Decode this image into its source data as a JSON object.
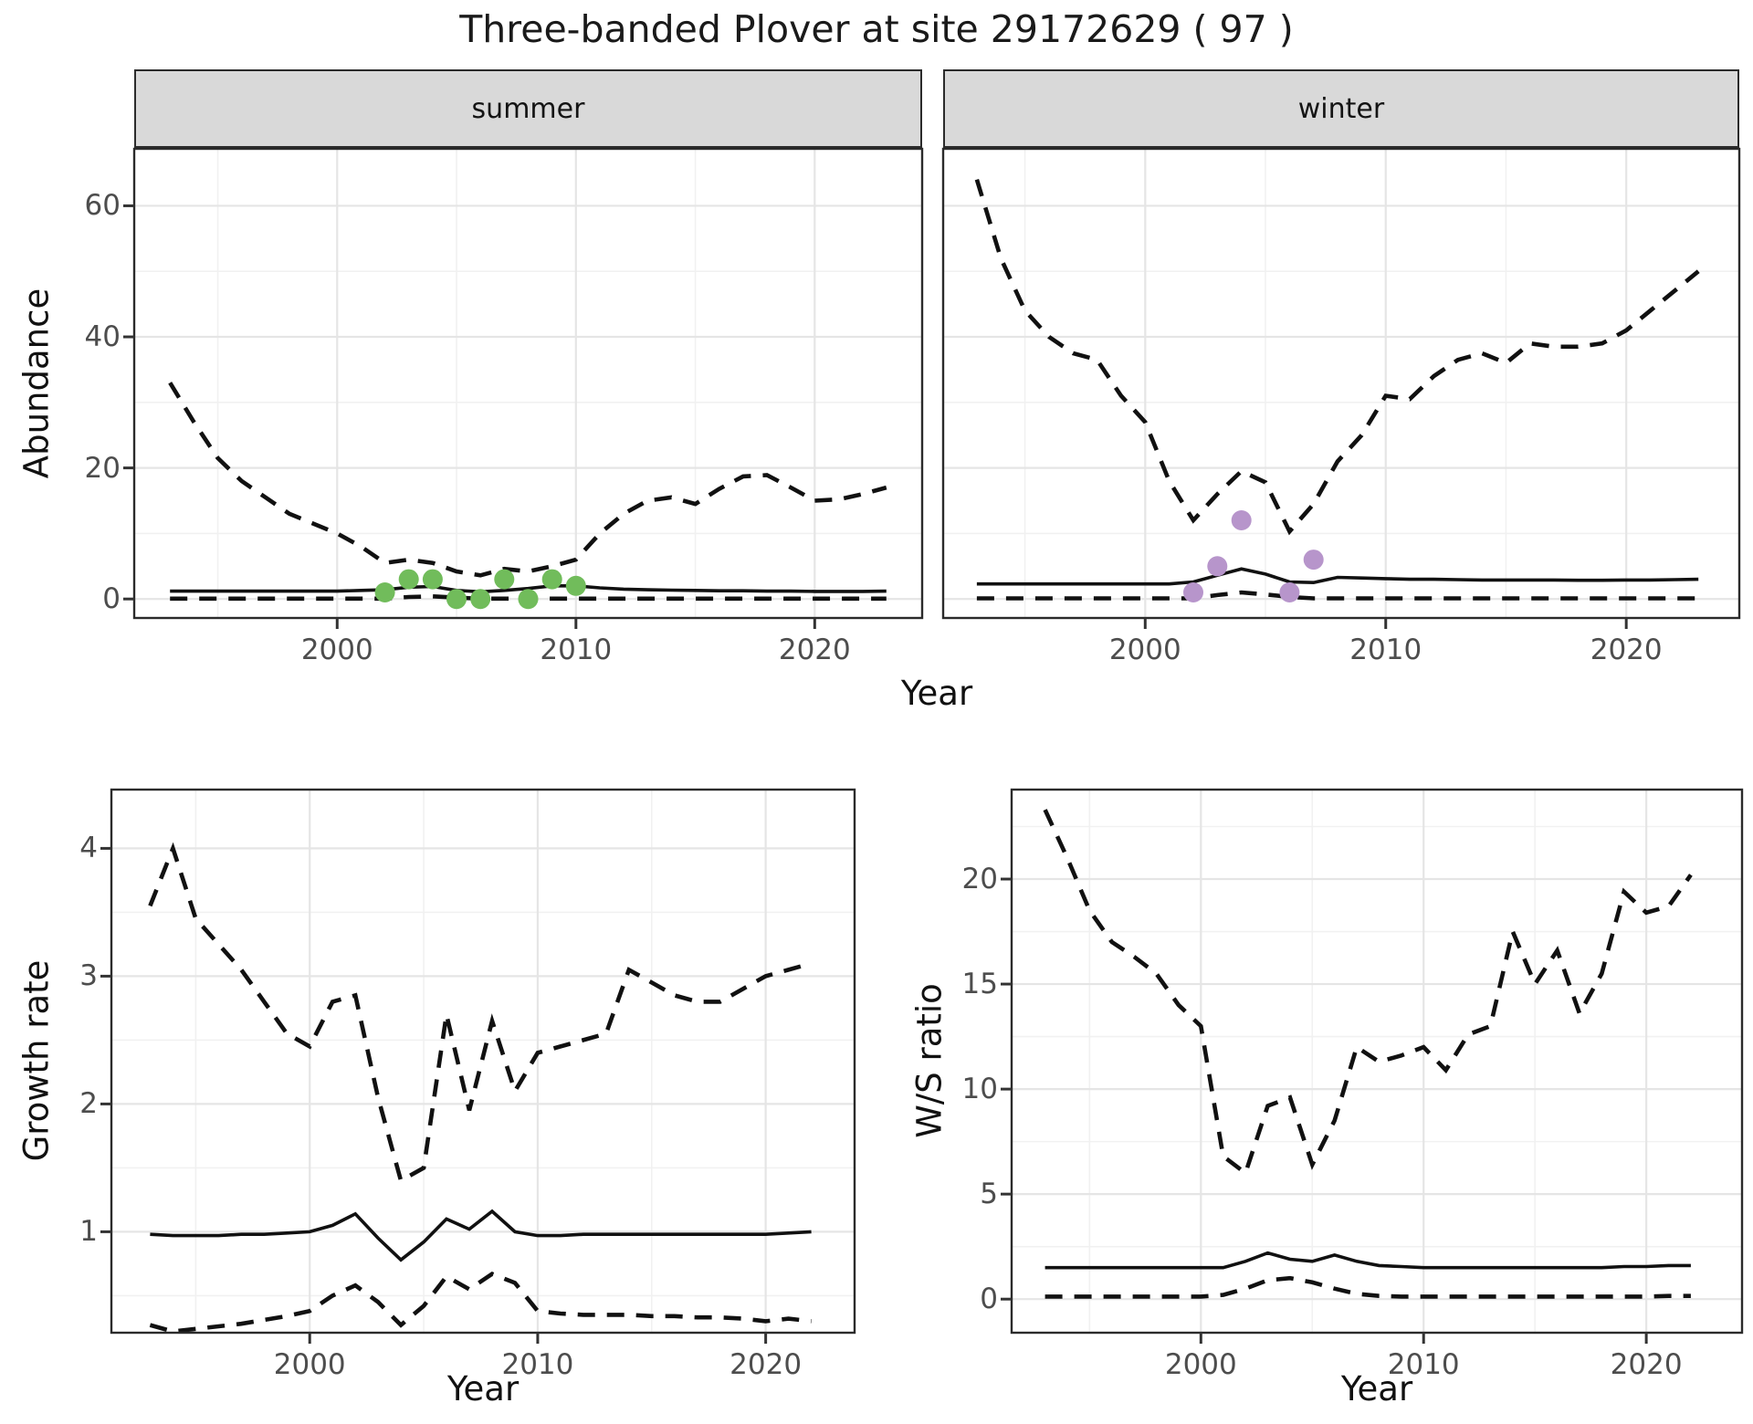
{
  "title": "Three-banded Plover at site 29172629 ( 97 )",
  "colors": {
    "summer_point": "#71BC5B",
    "winter_point": "#B795CB",
    "line": "#111111",
    "grid_major": "#e5e5e5",
    "grid_minor": "#f1f1f1",
    "strip_bg": "#d9d9d9",
    "panel_border": "#2b2b2b",
    "tick_text": "#4d4d4d"
  },
  "axis_titles": {
    "abundance": "Abundance",
    "year_top": "Year",
    "growth": "Growth rate",
    "year_growth": "Year",
    "ws": "W/S ratio",
    "year_ws": "Year"
  },
  "chart_data": [
    {
      "id": "summer",
      "type": "line",
      "strip": "summer",
      "xlabel": "Year",
      "ylabel": "Abundance",
      "xlim": [
        1991.5,
        2024.5
      ],
      "ylim": [
        -2.9,
        68.7
      ],
      "x_ticks": [
        2000,
        2010,
        2020
      ],
      "x_minor": [
        1995,
        2005,
        2015
      ],
      "y_ticks": [
        0,
        20,
        40,
        60
      ],
      "y_minor": [
        10,
        30,
        50
      ],
      "series": [
        {
          "name": "upper_95ci",
          "style": "dashed",
          "start": 1993,
          "values": [
            33,
            27,
            21.5,
            18,
            15.5,
            13,
            11.5,
            10,
            8,
            5.5,
            6,
            5.5,
            4.2,
            3.6,
            4.6,
            4.2,
            5,
            6,
            10,
            13,
            15,
            15.5,
            14.5,
            16.8,
            18.7,
            18.9,
            17,
            15,
            15.2,
            16,
            17
          ]
        },
        {
          "name": "median",
          "style": "solid",
          "start": 1993,
          "values": [
            1.2,
            1.2,
            1.2,
            1.2,
            1.2,
            1.2,
            1.2,
            1.2,
            1.3,
            1.4,
            1.8,
            1.9,
            1.3,
            1.1,
            1.3,
            1.6,
            2.0,
            2.0,
            1.7,
            1.5,
            1.4,
            1.35,
            1.3,
            1.25,
            1.25,
            1.2,
            1.2,
            1.15,
            1.15,
            1.15,
            1.2
          ]
        },
        {
          "name": "lower_95ci",
          "style": "dashed",
          "start": 1993,
          "values": [
            0.05,
            0.05,
            0.05,
            0.05,
            0.05,
            0.05,
            0.05,
            0.05,
            0.05,
            0.05,
            0.3,
            0.4,
            0.2,
            0.05,
            0.05,
            0.05,
            0.05,
            0.05,
            0.05,
            0.05,
            0.05,
            0.05,
            0.05,
            0.05,
            0.05,
            0.05,
            0.05,
            0.05,
            0.05,
            0.05,
            0.05
          ]
        }
      ],
      "scatter": {
        "name": "observed-summer-counts",
        "color_key": "summer_point",
        "points": [
          [
            2002,
            1
          ],
          [
            2003,
            3
          ],
          [
            2004,
            3
          ],
          [
            2005,
            0
          ],
          [
            2006,
            0
          ],
          [
            2007,
            3
          ],
          [
            2008,
            0
          ],
          [
            2009,
            3
          ],
          [
            2010,
            2
          ]
        ]
      }
    },
    {
      "id": "winter",
      "type": "line",
      "strip": "winter",
      "xlabel": "Year",
      "ylabel": "Abundance",
      "xlim": [
        1991.6,
        2024.7
      ],
      "ylim": [
        -2.9,
        68.7
      ],
      "x_ticks": [
        2000,
        2010,
        2020
      ],
      "x_minor": [
        1995,
        2005,
        2015
      ],
      "y_ticks": [
        0,
        20,
        40,
        60
      ],
      "y_minor": [
        10,
        30,
        50
      ],
      "series": [
        {
          "name": "upper_95ci",
          "style": "dashed",
          "start": 1993,
          "values": [
            64,
            52,
            44,
            40,
            37.5,
            36.5,
            31,
            27,
            18,
            12,
            16,
            19.5,
            17.8,
            10.3,
            14.5,
            21,
            25,
            31,
            30.5,
            34,
            36.5,
            37.5,
            36,
            39,
            38.5,
            38.5,
            39,
            41,
            44,
            47,
            50
          ]
        },
        {
          "name": "median",
          "style": "solid",
          "start": 1993,
          "values": [
            2.3,
            2.3,
            2.3,
            2.3,
            2.3,
            2.3,
            2.3,
            2.3,
            2.3,
            2.6,
            3.6,
            4.6,
            3.8,
            2.6,
            2.5,
            3.3,
            3.2,
            3.1,
            3.0,
            3.0,
            2.95,
            2.9,
            2.9,
            2.9,
            2.9,
            2.85,
            2.85,
            2.9,
            2.9,
            2.95,
            3.0
          ]
        },
        {
          "name": "lower_95ci",
          "style": "dashed",
          "start": 1993,
          "values": [
            0.1,
            0.1,
            0.1,
            0.1,
            0.1,
            0.1,
            0.1,
            0.1,
            0.1,
            0.1,
            0.6,
            1.0,
            0.7,
            0.3,
            0.1,
            0.1,
            0.1,
            0.1,
            0.1,
            0.1,
            0.1,
            0.1,
            0.1,
            0.1,
            0.1,
            0.1,
            0.1,
            0.1,
            0.1,
            0.1,
            0.1
          ]
        }
      ],
      "scatter": {
        "name": "observed-winter-counts",
        "color_key": "winter_point",
        "points": [
          [
            2002,
            1
          ],
          [
            2003,
            5
          ],
          [
            2004,
            12
          ],
          [
            2006,
            1
          ],
          [
            2007,
            6
          ]
        ]
      }
    },
    {
      "id": "growth",
      "type": "line",
      "strip": null,
      "xlabel": "Year",
      "ylabel": "Growth rate",
      "xlim": [
        1991.3,
        2023.9
      ],
      "ylim": [
        0.21,
        4.46
      ],
      "x_ticks": [
        2000,
        2010,
        2020
      ],
      "x_minor": [
        1995,
        2005,
        2015
      ],
      "y_ticks": [
        1,
        2,
        3,
        4
      ],
      "y_minor": [
        0.5,
        1.5,
        2.5,
        3.5
      ],
      "series": [
        {
          "name": "upper_95ci",
          "style": "dashed",
          "start": 1993,
          "values": [
            3.55,
            4.0,
            3.45,
            3.25,
            3.05,
            2.8,
            2.55,
            2.45,
            2.8,
            2.85,
            2.05,
            1.4,
            1.5,
            2.7,
            1.95,
            2.65,
            2.1,
            2.4,
            2.45,
            2.5,
            2.55,
            3.05,
            2.95,
            2.85,
            2.8,
            2.8,
            2.9,
            3.0,
            3.05,
            3.1
          ]
        },
        {
          "name": "median",
          "style": "solid",
          "start": 1993,
          "values": [
            0.98,
            0.97,
            0.97,
            0.97,
            0.98,
            0.98,
            0.99,
            1.0,
            1.05,
            1.14,
            0.95,
            0.78,
            0.92,
            1.1,
            1.02,
            1.16,
            1.0,
            0.97,
            0.97,
            0.98,
            0.98,
            0.98,
            0.98,
            0.98,
            0.98,
            0.98,
            0.98,
            0.98,
            0.99,
            1.0
          ]
        },
        {
          "name": "lower_95ci",
          "style": "dashed",
          "start": 1993,
          "values": [
            0.27,
            0.22,
            0.24,
            0.26,
            0.28,
            0.31,
            0.34,
            0.38,
            0.5,
            0.58,
            0.45,
            0.27,
            0.42,
            0.65,
            0.55,
            0.67,
            0.6,
            0.38,
            0.36,
            0.35,
            0.35,
            0.35,
            0.34,
            0.34,
            0.33,
            0.33,
            0.32,
            0.3,
            0.32,
            0.3
          ]
        }
      ],
      "scatter": null
    },
    {
      "id": "ws",
      "type": "line",
      "strip": null,
      "xlabel": "Year",
      "ylabel": "W/S ratio",
      "xlim": [
        1991.5,
        2024.3
      ],
      "ylim": [
        -1.6,
        24.26
      ],
      "x_ticks": [
        2000,
        2010,
        2020
      ],
      "x_minor": [
        1995,
        2005,
        2015
      ],
      "y_ticks": [
        0,
        5,
        10,
        15,
        20
      ],
      "y_minor": [
        2.5,
        7.5,
        12.5,
        17.5,
        22.5
      ],
      "series": [
        {
          "name": "upper_95ci",
          "style": "dashed",
          "start": 1993,
          "values": [
            23.3,
            21,
            18.5,
            17,
            16.3,
            15.5,
            14,
            13,
            6.8,
            6.0,
            9.2,
            9.6,
            6.4,
            8.5,
            12,
            11.3,
            11.6,
            12,
            10.9,
            12.6,
            13,
            17.5,
            15,
            16.6,
            13.6,
            15.5,
            19.4,
            18.4,
            18.7,
            20.2
          ]
        },
        {
          "name": "median",
          "style": "solid",
          "start": 1993,
          "values": [
            1.5,
            1.5,
            1.5,
            1.5,
            1.5,
            1.5,
            1.5,
            1.5,
            1.5,
            1.8,
            2.2,
            1.9,
            1.8,
            2.1,
            1.8,
            1.6,
            1.55,
            1.5,
            1.5,
            1.5,
            1.5,
            1.5,
            1.5,
            1.5,
            1.5,
            1.5,
            1.55,
            1.55,
            1.6,
            1.6
          ]
        },
        {
          "name": "lower_95ci",
          "style": "dashed",
          "start": 1993,
          "values": [
            0.12,
            0.12,
            0.12,
            0.12,
            0.12,
            0.12,
            0.12,
            0.12,
            0.2,
            0.5,
            0.9,
            1.0,
            0.8,
            0.5,
            0.25,
            0.15,
            0.12,
            0.12,
            0.12,
            0.12,
            0.12,
            0.12,
            0.12,
            0.12,
            0.12,
            0.12,
            0.12,
            0.12,
            0.15,
            0.15
          ]
        }
      ],
      "scatter": null
    }
  ]
}
